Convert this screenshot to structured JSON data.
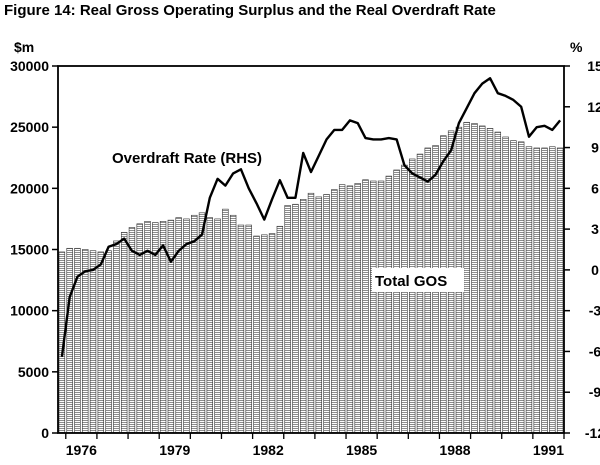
{
  "chart_data": {
    "type": "bar",
    "title": "Figure 14: Real Gross Operating Surplus and the Real Overdraft Rate",
    "left_unit": "$m",
    "right_unit": "%",
    "left_ticks": [
      "0",
      "5000",
      "10000",
      "15000",
      "20000",
      "25000",
      "30000"
    ],
    "right_ticks": [
      "-12",
      "-9",
      "-6",
      "-3",
      "0",
      "3",
      "6",
      "9",
      "12",
      "15"
    ],
    "x_ticks": [
      "1976",
      "1979",
      "1982",
      "1985",
      "1988",
      "1991"
    ],
    "ylim_left": [
      0,
      30000
    ],
    "ylim_right": [
      -12,
      15
    ],
    "x_start": 1975.75,
    "period": "quarterly",
    "annotations": [
      "Overdraft Rate (RHS)",
      "Total GOS"
    ],
    "series": [
      {
        "name": "Total GOS",
        "axis": "left",
        "kind": "bar",
        "values": [
          14800,
          15100,
          15100,
          15000,
          14900,
          14800,
          14900,
          15700,
          16400,
          16800,
          17100,
          17300,
          17200,
          17300,
          17400,
          17600,
          17500,
          17800,
          18000,
          17600,
          17500,
          18300,
          17800,
          17000,
          17000,
          16100,
          16200,
          16300,
          16900,
          18600,
          18700,
          19100,
          19600,
          19300,
          19500,
          19900,
          20300,
          20200,
          20400,
          20700,
          20600,
          20600,
          21000,
          21500,
          21900,
          22400,
          22800,
          23300,
          23500,
          24300,
          24700,
          25000,
          25400,
          25300,
          25100,
          24900,
          24600,
          24200,
          23900,
          23800,
          23400,
          23300,
          23300,
          23400,
          23300
        ]
      },
      {
        "name": "Overdraft Rate (RHS)",
        "axis": "right",
        "kind": "line",
        "values": [
          -6.4,
          -2.0,
          -0.5,
          -0.1,
          0.0,
          0.4,
          1.7,
          1.9,
          2.3,
          1.4,
          1.1,
          1.4,
          1.1,
          1.8,
          0.6,
          1.4,
          1.9,
          2.1,
          2.6,
          5.3,
          6.7,
          6.2,
          7.1,
          7.4,
          6.0,
          4.9,
          3.7,
          5.2,
          6.6,
          5.3,
          5.3,
          8.6,
          7.2,
          8.4,
          9.6,
          10.3,
          10.3,
          11.0,
          10.8,
          9.7,
          9.6,
          9.6,
          9.7,
          9.6,
          7.7,
          7.1,
          6.8,
          6.5,
          7.0,
          8.0,
          8.8,
          10.8,
          11.9,
          13.0,
          13.7,
          14.1,
          13.0,
          12.8,
          12.5,
          12.0,
          9.8,
          10.5,
          10.6,
          10.3,
          11.0
        ]
      }
    ]
  }
}
